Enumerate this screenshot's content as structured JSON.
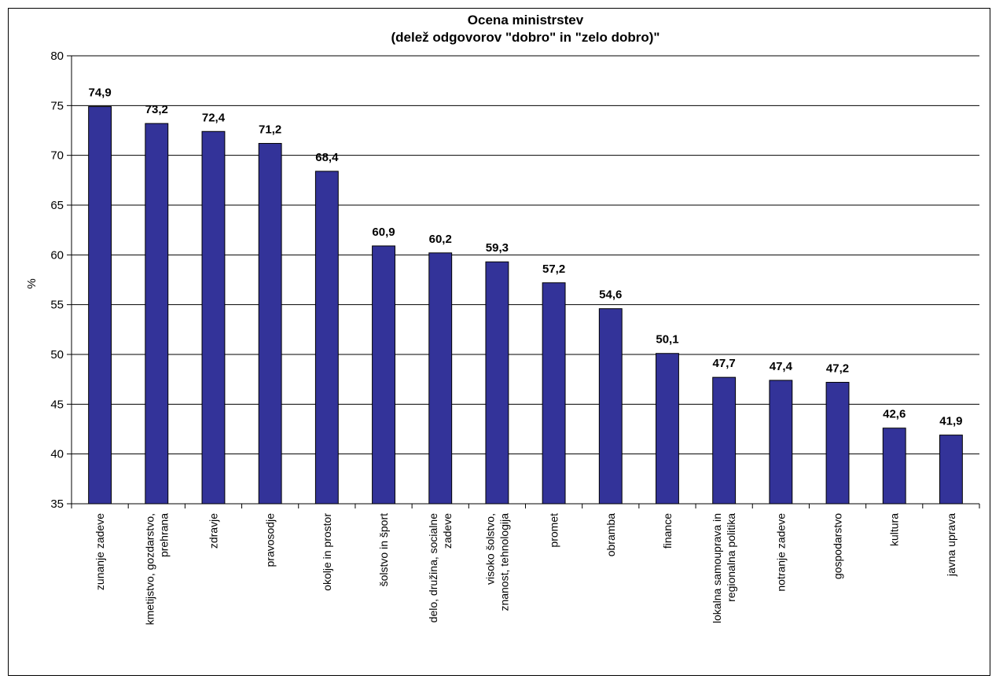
{
  "chart_data": {
    "type": "bar",
    "title": [
      "Ocena ministrstev",
      "(delež odgovorov \"dobro\" in \"zelo dobro)\""
    ],
    "xlabel": "",
    "ylabel": "%",
    "ylim": [
      35,
      80
    ],
    "yticks": [
      35,
      40,
      45,
      50,
      55,
      60,
      65,
      70,
      75,
      80
    ],
    "grid": true,
    "legend": "none",
    "bar_color": "#333399",
    "categories": [
      [
        "zunanje zadeve"
      ],
      [
        "kmetijstvo, gozdarstvo,",
        "prehrana"
      ],
      [
        "zdravje"
      ],
      [
        "pravosodje"
      ],
      [
        "okolje in prostor"
      ],
      [
        "šolstvo in šport"
      ],
      [
        "delo, družina, socialne",
        "zadeve"
      ],
      [
        "visoko šolstvo,",
        "znanost, tehnologija"
      ],
      [
        "promet"
      ],
      [
        "obramba"
      ],
      [
        "finance"
      ],
      [
        "lokalna samouprava in",
        "regionalna politika"
      ],
      [
        "notranje zadeve"
      ],
      [
        "gospodarstvo"
      ],
      [
        "kultura"
      ],
      [
        "javna uprava"
      ]
    ],
    "values": [
      74.9,
      73.2,
      72.4,
      71.2,
      68.4,
      60.9,
      60.2,
      59.3,
      57.2,
      54.6,
      50.1,
      47.7,
      47.4,
      47.2,
      42.6,
      41.9
    ],
    "value_labels": [
      "74,9",
      "73,2",
      "72,4",
      "71,2",
      "68,4",
      "60,9",
      "60,2",
      "59,3",
      "57,2",
      "54,6",
      "50,1",
      "47,7",
      "47,4",
      "47,2",
      "42,6",
      "41,9"
    ]
  }
}
